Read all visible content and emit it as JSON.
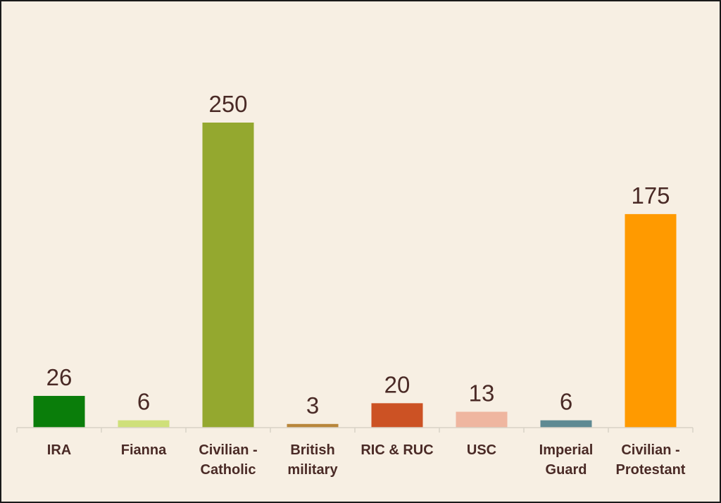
{
  "chart_data": {
    "type": "bar",
    "title": "",
    "xlabel": "",
    "ylabel": "",
    "ylim": [
      0,
      250
    ],
    "grid": false,
    "categories": [
      [
        "IRA"
      ],
      [
        "Fianna"
      ],
      [
        "Civilian -",
        "Catholic"
      ],
      [
        "British",
        "military"
      ],
      [
        "RIC & RUC"
      ],
      [
        "USC"
      ],
      [
        "Imperial",
        "Guard"
      ],
      [
        "Civilian -",
        "Protestant"
      ]
    ],
    "values": [
      26,
      6,
      250,
      3,
      20,
      13,
      6,
      175
    ],
    "data_labels": [
      "26",
      "6",
      "250",
      "3",
      "20",
      "13",
      "6",
      "175"
    ],
    "colors": [
      "#0a7d0a",
      "#cfe07a",
      "#94a82f",
      "#b8863b",
      "#cc5224",
      "#efb6a0",
      "#5f8a93",
      "#ff9a00"
    ]
  }
}
